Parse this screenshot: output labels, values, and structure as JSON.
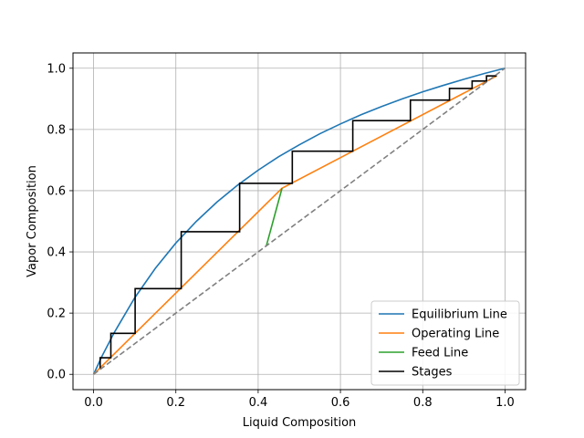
{
  "chart_data": {
    "type": "line",
    "title": "",
    "xlabel": "Liquid Composition",
    "ylabel": "Vapor Composition",
    "xlim": [
      -0.05,
      1.05
    ],
    "ylim": [
      -0.05,
      1.05
    ],
    "xticks": [
      "0.0",
      "0.2",
      "0.4",
      "0.6",
      "0.8",
      "1.0"
    ],
    "yticks": [
      "0.0",
      "0.2",
      "0.4",
      "0.6",
      "0.8",
      "1.0"
    ],
    "grid": true,
    "legend_position": "lower-right",
    "series": [
      {
        "name": "Equilibrium Line",
        "color": "#1f77b4",
        "style": "solid",
        "x": [
          0,
          0.02,
          0.05,
          0.1,
          0.15,
          0.2,
          0.25,
          0.3,
          0.35,
          0.4,
          0.45,
          0.5,
          0.55,
          0.6,
          0.65,
          0.7,
          0.75,
          0.8,
          0.85,
          0.9,
          0.95,
          1.0
        ],
        "y": [
          0,
          0.058,
          0.136,
          0.25,
          0.346,
          0.429,
          0.5,
          0.563,
          0.618,
          0.667,
          0.711,
          0.75,
          0.786,
          0.818,
          0.848,
          0.875,
          0.9,
          0.923,
          0.944,
          0.964,
          0.983,
          1.0
        ]
      },
      {
        "name": "Operating Line",
        "color": "#ff7f0e",
        "style": "solid",
        "x": [
          0,
          0.458,
          0.98
        ],
        "y": [
          0,
          0.608,
          0.975
        ]
      },
      {
        "name": "Feed Line",
        "color": "#2ca02c",
        "style": "solid",
        "x": [
          0.42,
          0.458
        ],
        "y": [
          0.42,
          0.608
        ]
      },
      {
        "name": "Stages",
        "color": "#000000",
        "style": "solid",
        "x": [
          0.98,
          0.955,
          0.955,
          0.92,
          0.92,
          0.865,
          0.865,
          0.77,
          0.77,
          0.63,
          0.63,
          0.483,
          0.483,
          0.355,
          0.355,
          0.213,
          0.213,
          0.101,
          0.101,
          0.042,
          0.042,
          0.016,
          0.016
        ],
        "y": [
          0.975,
          0.975,
          0.958,
          0.958,
          0.934,
          0.934,
          0.896,
          0.896,
          0.829,
          0.829,
          0.729,
          0.729,
          0.624,
          0.624,
          0.466,
          0.466,
          0.28,
          0.28,
          0.134,
          0.134,
          0.054,
          0.054,
          0.02
        ]
      },
      {
        "name": "",
        "color": "#808080",
        "style": "dashed",
        "x": [
          0,
          1
        ],
        "y": [
          0,
          1
        ]
      }
    ]
  }
}
